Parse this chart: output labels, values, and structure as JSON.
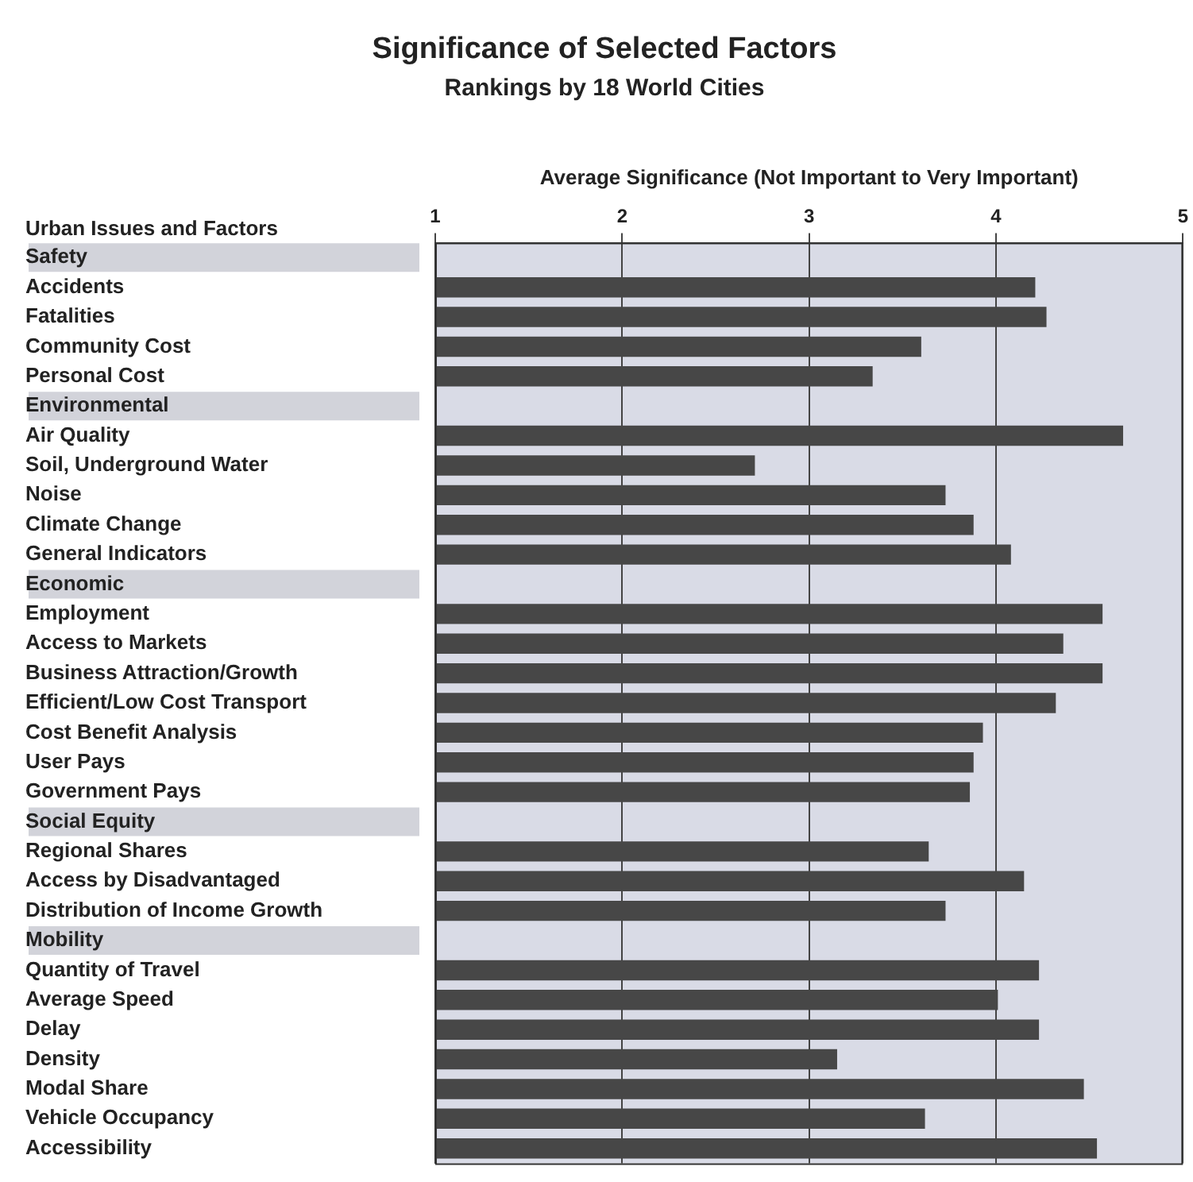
{
  "chart_data": {
    "type": "bar",
    "orientation": "horizontal",
    "title": "Significance of Selected Factors",
    "subtitle": "Rankings by 18 World Cities",
    "xlabel": "Average Significance (Not Important to Very Important)",
    "ylabel": "Urban Issues and Factors",
    "categories": [
      "Safety",
      "Accidents",
      "Fatalities",
      "Community Cost",
      "Personal Cost",
      "Environmental",
      "Air Quality",
      "Soil, Underground Water",
      "Noise",
      "Climate Change",
      "General Indicators",
      "Economic",
      "Employment",
      "Access to Markets",
      "Business Attraction/Growth",
      "Efficient/Low Cost Transport",
      "Cost Benefit Analysis",
      "User Pays",
      "Government Pays",
      "Social Equity",
      "Regional Shares",
      "Access by Disadvantaged",
      "Distribution of Income Growth",
      "Mobility",
      "Quantity of Travel",
      "Average Speed",
      "Delay",
      "Density",
      "Modal Share",
      "Vehicle Occupancy",
      "Accessibility"
    ],
    "values": [
      null,
      4.21,
      4.27,
      3.6,
      3.34,
      null,
      4.68,
      2.71,
      3.73,
      3.88,
      4.08,
      null,
      4.57,
      4.36,
      4.57,
      4.32,
      3.93,
      3.88,
      3.86,
      null,
      3.64,
      4.15,
      3.73,
      null,
      4.23,
      4.01,
      4.23,
      3.15,
      4.47,
      3.62,
      4.54
    ],
    "color": "#474747",
    "xlim": [
      1,
      5
    ],
    "xticks": [
      1,
      2,
      3,
      4,
      5
    ],
    "grid": "x",
    "legend": false
  }
}
